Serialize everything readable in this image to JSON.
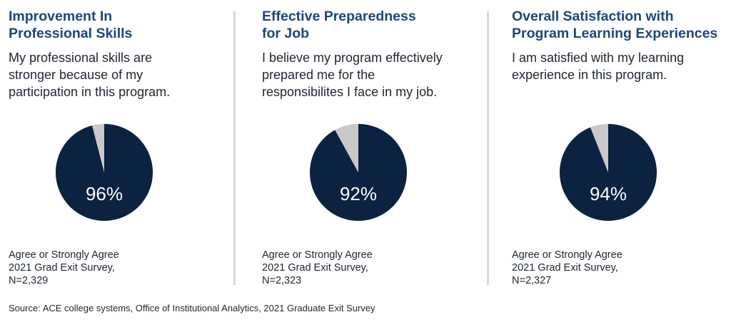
{
  "colors": {
    "agree": "#0b2240",
    "other": "#c9c9c9",
    "title": "#1d4580"
  },
  "chart_data": [
    {
      "type": "pie",
      "title": "Improvement In Professional Skills",
      "categories": [
        "Agree or Strongly Agree",
        "Other"
      ],
      "values": [
        96,
        4
      ],
      "label": "96%"
    },
    {
      "type": "pie",
      "title": "Effective Preparedness for Job",
      "categories": [
        "Agree or Strongly Agree",
        "Other"
      ],
      "values": [
        92,
        8
      ],
      "label": "92%"
    },
    {
      "type": "pie",
      "title": "Overall Satisfaction with Program Learning Experiences",
      "categories": [
        "Agree or Strongly Agree",
        "Other"
      ],
      "values": [
        94,
        6
      ],
      "label": "94%"
    }
  ],
  "panels": [
    {
      "title_lines": [
        "Improvement In",
        "Professional Skills"
      ],
      "question_lines": [
        "My professional skills are",
        "stronger because of my",
        "participation in this program."
      ],
      "pct_label": "96%",
      "footnote_lines": [
        "Agree or Strongly Agree",
        "2021 Grad Exit Survey,",
        "N=2,329"
      ]
    },
    {
      "title_lines": [
        "Effective Preparedness",
        "for Job"
      ],
      "question_lines": [
        "I believe my program effectively",
        "prepared me for the",
        "responsibilites I face in my job."
      ],
      "pct_label": "92%",
      "footnote_lines": [
        "Agree or Strongly Agree",
        "2021 Grad Exit Survey,",
        "N=2,323"
      ]
    },
    {
      "title_lines": [
        "Overall Satisfaction with",
        "Program Learning Experiences"
      ],
      "question_lines": [
        "I am satisfied with my learning",
        "experience in this program."
      ],
      "pct_label": "94%",
      "footnote_lines": [
        "Agree or Strongly Agree",
        "2021 Grad Exit Survey,",
        "N=2,327"
      ]
    }
  ],
  "source": "Source: ACE college systems, Office of Institutional Analytics, 2021 Graduate Exit Survey"
}
